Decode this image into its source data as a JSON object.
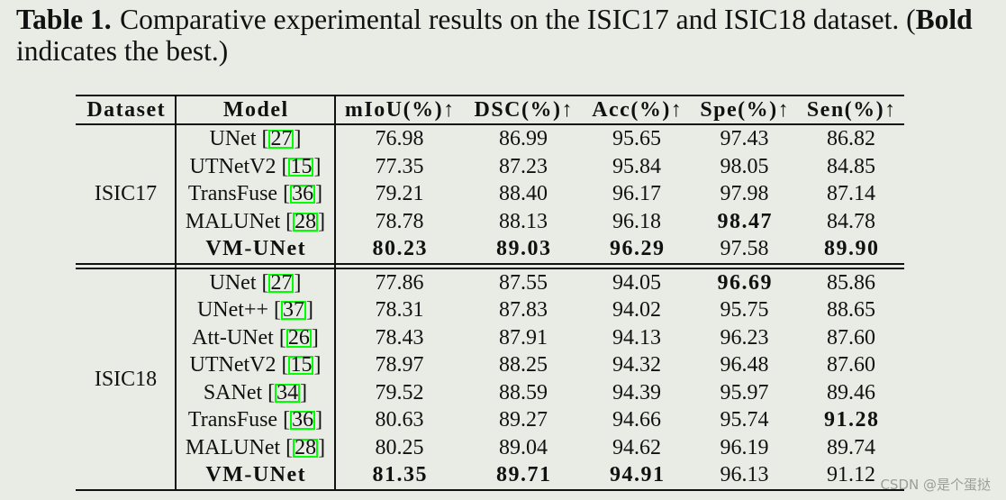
{
  "caption": {
    "label": "Table 1.",
    "text": "Comparative experimental results on the ISIC17 and ISIC18 dataset. (",
    "bold": "Bold",
    "tail": "indicates the best.)"
  },
  "table": {
    "headers": [
      "Dataset",
      "Model",
      "mIoU(%)↑",
      "DSC(%)↑",
      "Acc(%)↑",
      "Spe(%)↑",
      "Sen(%)↑"
    ],
    "ref_open": "[",
    "ref_close": "]",
    "groups": [
      {
        "dataset": "ISIC17",
        "rows": [
          {
            "model": "UNet",
            "ref": "27",
            "values": [
              "76.98",
              "86.99",
              "95.65",
              "97.43",
              "86.82"
            ],
            "best": [
              false,
              false,
              false,
              false,
              false
            ]
          },
          {
            "model": "UTNetV2",
            "ref": "15",
            "values": [
              "77.35",
              "87.23",
              "95.84",
              "98.05",
              "84.85"
            ],
            "best": [
              false,
              false,
              false,
              false,
              false
            ]
          },
          {
            "model": "TransFuse",
            "ref": "36",
            "values": [
              "79.21",
              "88.40",
              "96.17",
              "97.98",
              "87.14"
            ],
            "best": [
              false,
              false,
              false,
              false,
              false
            ]
          },
          {
            "model": "MALUNet",
            "ref": "28",
            "values": [
              "78.78",
              "88.13",
              "96.18",
              "98.47",
              "84.78"
            ],
            "best": [
              false,
              false,
              false,
              true,
              false
            ]
          },
          {
            "model": "VM-UNet",
            "model_bold": true,
            "values": [
              "80.23",
              "89.03",
              "96.29",
              "97.58",
              "89.90"
            ],
            "best": [
              true,
              true,
              true,
              false,
              true
            ]
          }
        ]
      },
      {
        "dataset": "ISIC18",
        "rows": [
          {
            "model": "UNet",
            "ref": "27",
            "values": [
              "77.86",
              "87.55",
              "94.05",
              "96.69",
              "85.86"
            ],
            "best": [
              false,
              false,
              false,
              true,
              false
            ]
          },
          {
            "model": "UNet++",
            "ref": "37",
            "values": [
              "78.31",
              "87.83",
              "94.02",
              "95.75",
              "88.65"
            ],
            "best": [
              false,
              false,
              false,
              false,
              false
            ]
          },
          {
            "model": "Att-UNet",
            "ref": "26",
            "values": [
              "78.43",
              "87.91",
              "94.13",
              "96.23",
              "87.60"
            ],
            "best": [
              false,
              false,
              false,
              false,
              false
            ]
          },
          {
            "model": "UTNetV2",
            "ref": "15",
            "values": [
              "78.97",
              "88.25",
              "94.32",
              "96.48",
              "87.60"
            ],
            "best": [
              false,
              false,
              false,
              false,
              false
            ]
          },
          {
            "model": "SANet",
            "ref": "34",
            "values": [
              "79.52",
              "88.59",
              "94.39",
              "95.97",
              "89.46"
            ],
            "best": [
              false,
              false,
              false,
              false,
              false
            ]
          },
          {
            "model": "TransFuse",
            "ref": "36",
            "values": [
              "80.63",
              "89.27",
              "94.66",
              "95.74",
              "91.28"
            ],
            "best": [
              false,
              false,
              false,
              false,
              true
            ]
          },
          {
            "model": "MALUNet",
            "ref": "28",
            "values": [
              "80.25",
              "89.04",
              "94.62",
              "96.19",
              "89.74"
            ],
            "best": [
              false,
              false,
              false,
              false,
              false
            ]
          },
          {
            "model": "VM-UNet",
            "model_bold": true,
            "values": [
              "81.35",
              "89.71",
              "94.91",
              "96.13",
              "91.12"
            ],
            "best": [
              true,
              true,
              true,
              false,
              false
            ]
          }
        ]
      }
    ]
  },
  "colors": {
    "background": "#e8ece4",
    "text": "#111111",
    "citation_box": "#00ff00"
  },
  "watermark": "CSDN @是个蛋挞"
}
